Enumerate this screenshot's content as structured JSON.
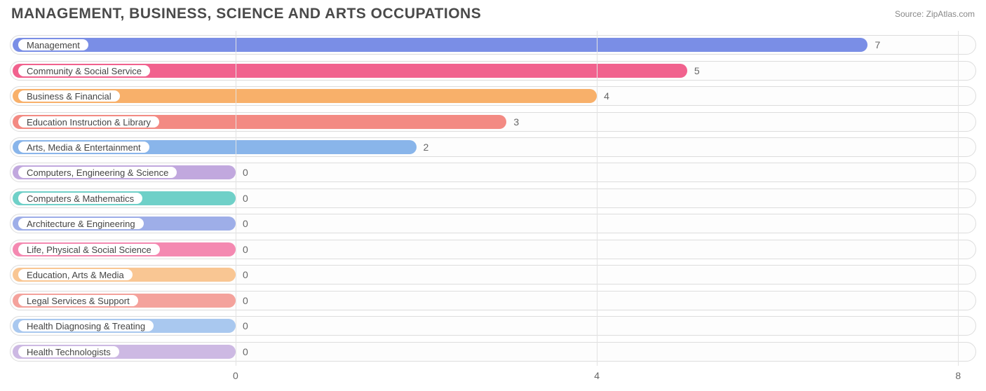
{
  "header": {
    "title": "MANAGEMENT, BUSINESS, SCIENCE AND ARTS OCCUPATIONS",
    "source_prefix": "Source: ",
    "source_name": "ZipAtlas.com"
  },
  "chart": {
    "type": "bar-horizontal",
    "xlim": [
      -2.5,
      8.2
    ],
    "xticks": [
      0,
      4,
      8
    ],
    "grid_color": "#e3e3e3",
    "track_border": "#dddddd",
    "track_bg": "#fdfdfd",
    "value_color": "#666666",
    "pill_bg": "#ffffff",
    "pill_text_color": "#444444",
    "label_fontsize": 13,
    "value_fontsize": 14,
    "rows": [
      {
        "label": "Management",
        "value": 7,
        "bar_color": "#7a8ee6",
        "pill_border": "#7a8ee6"
      },
      {
        "label": "Community & Social Service",
        "value": 5,
        "bar_color": "#f1628e",
        "pill_border": "#f1628e"
      },
      {
        "label": "Business & Financial",
        "value": 4,
        "bar_color": "#f8b06a",
        "pill_border": "#f8b06a"
      },
      {
        "label": "Education Instruction & Library",
        "value": 3,
        "bar_color": "#f38a83",
        "pill_border": "#f38a83"
      },
      {
        "label": "Arts, Media & Entertainment",
        "value": 2,
        "bar_color": "#89b5ea",
        "pill_border": "#89b5ea"
      },
      {
        "label": "Computers, Engineering & Science",
        "value": 0,
        "bar_color": "#c1a8de",
        "pill_border": "#c1a8de"
      },
      {
        "label": "Computers & Mathematics",
        "value": 0,
        "bar_color": "#6fd0c8",
        "pill_border": "#6fd0c8"
      },
      {
        "label": "Architecture & Engineering",
        "value": 0,
        "bar_color": "#9eaee8",
        "pill_border": "#9eaee8"
      },
      {
        "label": "Life, Physical & Social Science",
        "value": 0,
        "bar_color": "#f489b1",
        "pill_border": "#f489b1"
      },
      {
        "label": "Education, Arts & Media",
        "value": 0,
        "bar_color": "#f9c693",
        "pill_border": "#f9c693"
      },
      {
        "label": "Legal Services & Support",
        "value": 0,
        "bar_color": "#f4a29c",
        "pill_border": "#f4a29c"
      },
      {
        "label": "Health Diagnosing & Treating",
        "value": 0,
        "bar_color": "#a9c8ef",
        "pill_border": "#a9c8ef"
      },
      {
        "label": "Health Technologists",
        "value": 0,
        "bar_color": "#cdb9e3",
        "pill_border": "#cdb9e3"
      }
    ]
  }
}
